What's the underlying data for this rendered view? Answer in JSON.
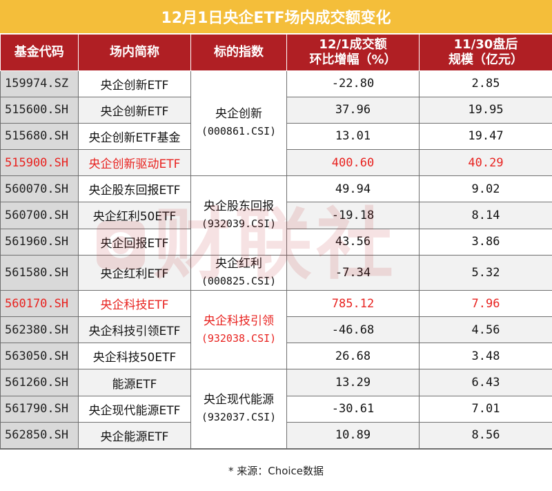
{
  "title": "12月1日央企ETF场内成交额变化",
  "headers": {
    "code": "基金代码",
    "name": "场内简称",
    "index": "标的指数",
    "change_line1": "12/1成交额",
    "change_line2": "环比增幅（%）",
    "scale_line1": "11/30盘后",
    "scale_line2": "规模（亿元）"
  },
  "index_groups": [
    {
      "name": "央企创新",
      "code": "(000861.CSI)"
    },
    {
      "name": "央企股东回报",
      "code": "(932039.CSI)"
    },
    {
      "name": "央企红利",
      "code": "(000825.CSI)"
    },
    {
      "name": "央企科技引领",
      "code": "(932038.CSI)"
    },
    {
      "name": "央企现代能源",
      "code": "(932037.CSI)"
    }
  ],
  "rows": [
    {
      "code": "159974.SZ",
      "name": "央企创新ETF",
      "change": "-22.80",
      "scale": "2.85"
    },
    {
      "code": "515600.SH",
      "name": "央企创新ETF",
      "change": "37.96",
      "scale": "19.95"
    },
    {
      "code": "515680.SH",
      "name": "央企创新ETF基金",
      "change": "13.01",
      "scale": "19.47"
    },
    {
      "code": "515900.SH",
      "name": "央企创新驱动ETF",
      "change": "400.60",
      "scale": "40.29"
    },
    {
      "code": "560070.SH",
      "name": "央企股东回报ETF",
      "change": "49.94",
      "scale": "9.02"
    },
    {
      "code": "560700.SH",
      "name": "央企红利50ETF",
      "change": "-19.18",
      "scale": "8.14"
    },
    {
      "code": "561960.SH",
      "name": "央企回报ETF",
      "change": "43.56",
      "scale": "3.86"
    },
    {
      "code": "561580.SH",
      "name": "央企红利ETF",
      "change": "-7.34",
      "scale": "5.32"
    },
    {
      "code": "560170.SH",
      "name": "央企科技ETF",
      "change": "785.12",
      "scale": "7.96"
    },
    {
      "code": "562380.SH",
      "name": "央企科技引领ETF",
      "change": "-46.68",
      "scale": "4.56"
    },
    {
      "code": "563050.SH",
      "name": "央企科技50ETF",
      "change": "26.68",
      "scale": "3.48"
    },
    {
      "code": "561260.SH",
      "name": "能源ETF",
      "change": "13.29",
      "scale": "6.43"
    },
    {
      "code": "561790.SH",
      "name": "央企现代能源ETF",
      "change": "-30.61",
      "scale": "7.01"
    },
    {
      "code": "562850.SH",
      "name": "央企能源ETF",
      "change": "10.89",
      "scale": "8.56"
    }
  ],
  "footer": "* 来源：Choice数据",
  "watermark": "财联社",
  "colors": {
    "title_bg": "#F4BE3A",
    "header_bg": "#B01F24",
    "highlight": "#E8221F",
    "code_bg": "#D9D9D9"
  }
}
